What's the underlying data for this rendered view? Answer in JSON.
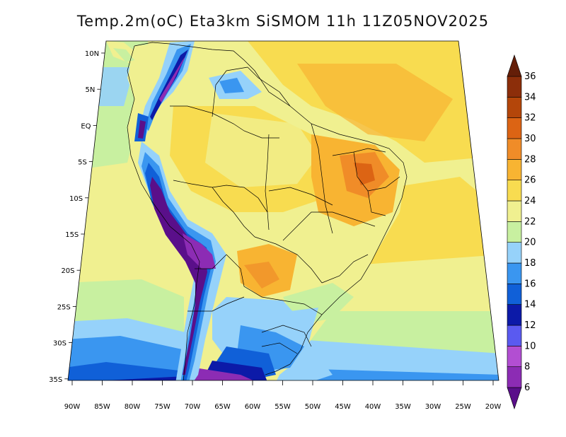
{
  "title": "Temp.2m(oC) Eta3km SiSMOM 11h 11Z05NOV2025",
  "lat_labels": [
    "10N",
    "5N",
    "EQ",
    "5S",
    "10S",
    "15S",
    "20S",
    "25S",
    "30S",
    "35S"
  ],
  "lon_labels": [
    "90W",
    "85W",
    "80W",
    "75W",
    "70W",
    "65W",
    "60W",
    "55W",
    "50W",
    "45W",
    "40W",
    "35W",
    "30W",
    "25W",
    "20W"
  ],
  "colorbar": {
    "labels": [
      "6",
      "8",
      "10",
      "12",
      "14",
      "16",
      "18",
      "20",
      "22",
      "24",
      "26",
      "28",
      "30",
      "32",
      "34",
      "36"
    ],
    "colors": [
      "#5a0f8a",
      "#8c2cb4",
      "#b24ed2",
      "#5a5af0",
      "#0c1aa8",
      "#1060d8",
      "#3a96f0",
      "#96d2fa",
      "#c8f0a0",
      "#f0f090",
      "#f8dc50",
      "#f8b432",
      "#f08c28",
      "#dc6414",
      "#b4460a",
      "#8c2e0a",
      "#641e08"
    ]
  }
}
